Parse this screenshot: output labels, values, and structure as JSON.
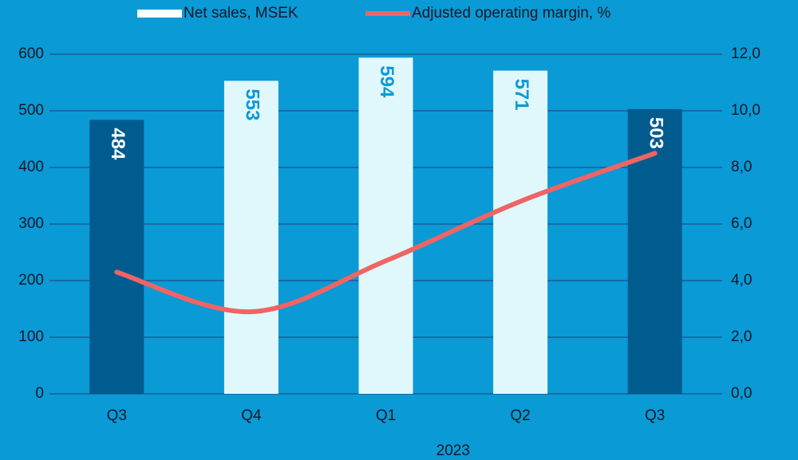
{
  "chart_data": {
    "type": "bar_line",
    "categories": [
      "Q3",
      "Q4",
      "Q1",
      "Q2",
      "Q3"
    ],
    "group_label": "2023",
    "series": [
      {
        "name": "Net sales, MSEK",
        "type": "bar",
        "color": "#ffffff",
        "colors": [
          "#005b8e",
          "#e0f7fc",
          "#e0f7fc",
          "#e0f7fc",
          "#005b8e"
        ],
        "label_colors": [
          "#ffffff",
          "#0a9ad6",
          "#0a9ad6",
          "#0a9ad6",
          "#ffffff"
        ],
        "values": [
          484,
          553,
          594,
          571,
          503
        ]
      },
      {
        "name": "Adjusted operating margin, %",
        "type": "line",
        "axis": "y2",
        "color": "#ef6464",
        "values": [
          4.3,
          2.9,
          4.7,
          6.8,
          8.5
        ]
      }
    ],
    "ylim": [
      0,
      600
    ],
    "yticks": [
      0,
      100,
      200,
      300,
      400,
      500,
      600
    ],
    "y2lim": [
      0,
      12
    ],
    "y2ticks": [
      {
        "value": 0,
        "label": "0,0"
      },
      {
        "value": 2,
        "label": "2,0"
      },
      {
        "value": 4,
        "label": "4,0"
      },
      {
        "value": 6,
        "label": "6,0"
      },
      {
        "value": 8,
        "label": "8,0"
      },
      {
        "value": 10,
        "label": "10,0"
      },
      {
        "value": 12,
        "label": "12,0"
      }
    ],
    "grid": true
  }
}
